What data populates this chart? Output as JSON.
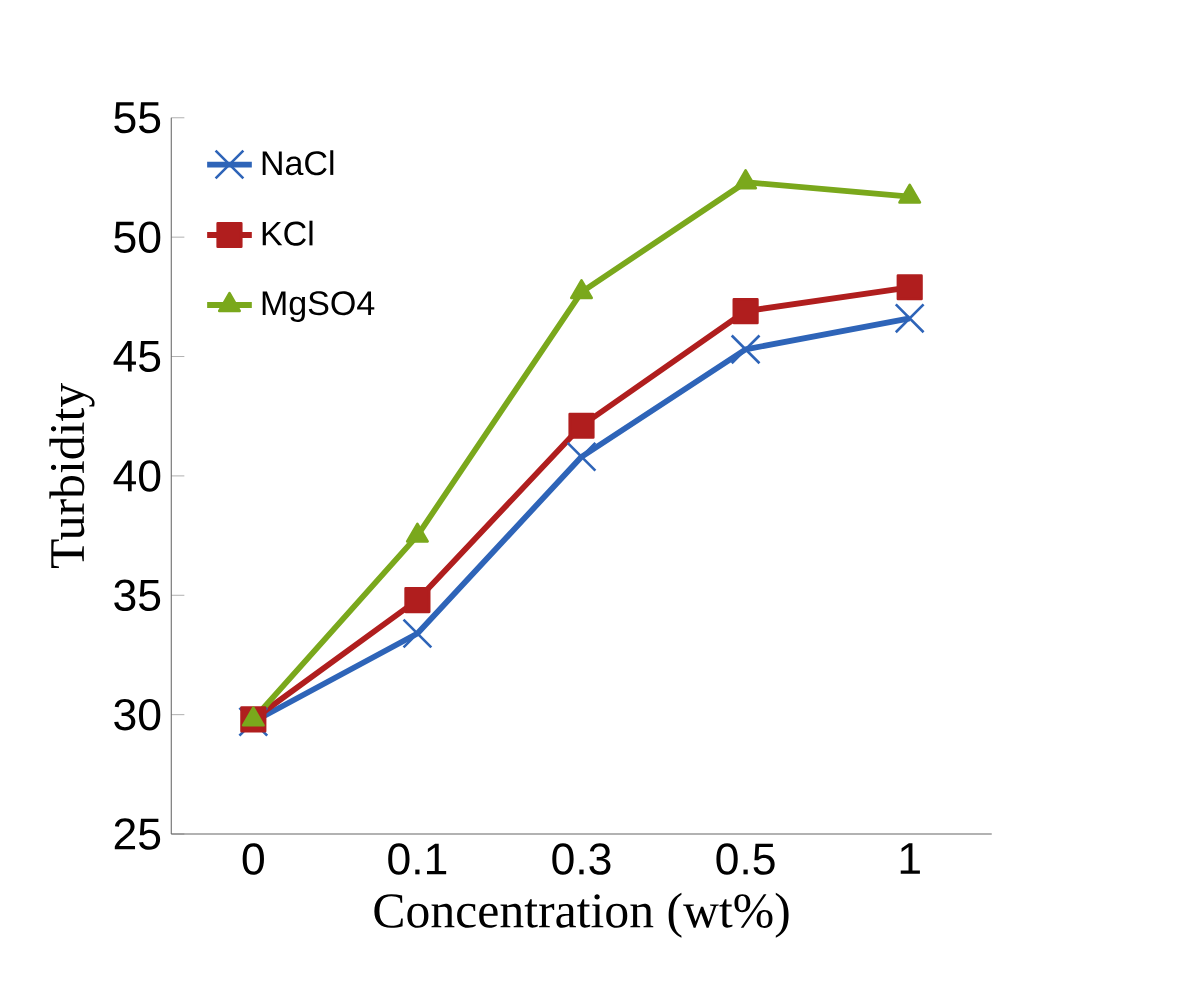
{
  "chart_data": {
    "type": "line",
    "xlabel": "Concentration (wt%)",
    "ylabel": "Turbidity",
    "categories": [
      "0",
      "0.1",
      "0.3",
      "0.5",
      "1"
    ],
    "series": [
      {
        "name": "NaCl",
        "color": "#2e64b8",
        "marker": "cross",
        "values": [
          29.7,
          33.4,
          40.8,
          45.3,
          46.6
        ]
      },
      {
        "name": "KCl",
        "color": "#b01e1e",
        "marker": "square",
        "values": [
          29.8,
          34.8,
          42.1,
          46.9,
          47.9
        ]
      },
      {
        "name": "MgSO4",
        "color": "#7aa81c",
        "marker": "triangle",
        "values": [
          29.8,
          37.5,
          47.7,
          52.3,
          51.7
        ]
      }
    ],
    "ylim": [
      25,
      55
    ],
    "yticks": [
      25,
      30,
      35,
      40,
      45,
      50,
      55
    ],
    "grid": false,
    "legend": "top left"
  }
}
